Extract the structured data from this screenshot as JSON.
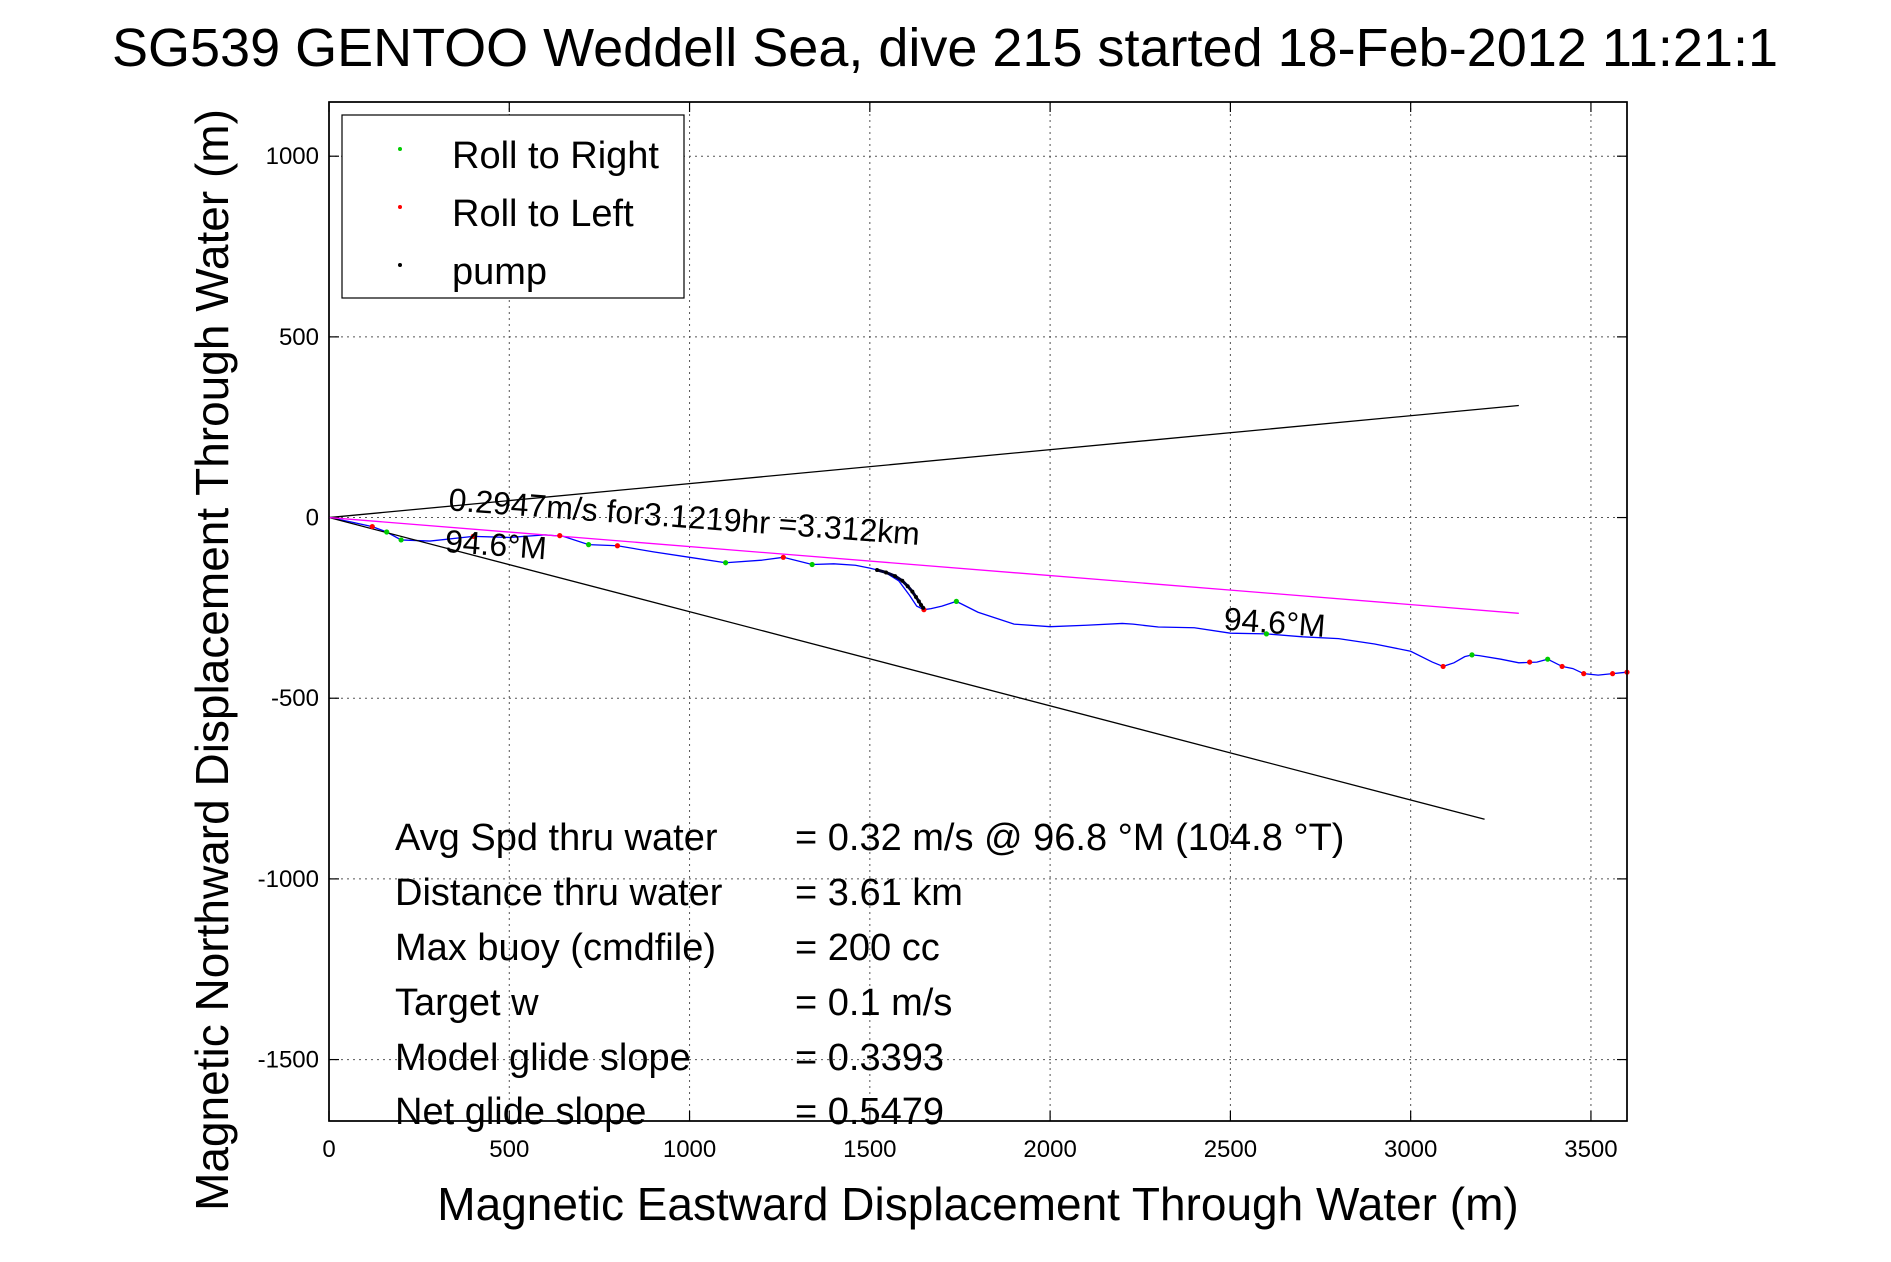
{
  "chart_data": {
    "type": "line",
    "title": "SG539 GENTOO Weddell Sea, dive 215 started 18-Feb-2012 11:21:1",
    "xlabel": "Magnetic Eastward Displacement Through Water (m)",
    "ylabel": "Magnetic Northward Displacement Through Water (m)",
    "xlim": [
      0,
      3600
    ],
    "ylim": [
      -1670,
      1150
    ],
    "xticks": [
      0,
      500,
      1000,
      1500,
      2000,
      2500,
      3000,
      3500
    ],
    "yticks": [
      1000,
      500,
      0,
      -500,
      -1000,
      -1500
    ],
    "xtick_labels": [
      "0",
      "500",
      "1000",
      "1500",
      "2000",
      "2500",
      "3000",
      "3500"
    ],
    "ytick_labels": [
      "1000",
      "500",
      "0",
      "-500",
      "-1000",
      "-1500"
    ],
    "grid": true,
    "legend": {
      "position": "top-left",
      "entries": [
        {
          "label": "Roll to Right",
          "color": "#00cc00"
        },
        {
          "label": "Roll to Left",
          "color": "#ff0000"
        },
        {
          "label": "pump",
          "color": "#000000"
        }
      ]
    },
    "series": [
      {
        "name": "track",
        "color": "#0000ff",
        "x": [
          0,
          60,
          120,
          160,
          200,
          280,
          400,
          500,
          600,
          650,
          720,
          800,
          900,
          1000,
          1100,
          1200,
          1260,
          1340,
          1400,
          1460,
          1500,
          1540,
          1580,
          1610,
          1630,
          1650,
          1670,
          1700,
          1740,
          1800,
          1900,
          2000,
          2100,
          2200,
          2230,
          2300,
          2400,
          2500,
          2600,
          2700,
          2800,
          2900,
          3000,
          3060,
          3090,
          3120,
          3150,
          3170,
          3190,
          3250,
          3300,
          3350,
          3380,
          3420,
          3450,
          3480,
          3520,
          3560,
          3600
        ],
        "y": [
          0,
          -12,
          -25,
          -40,
          -62,
          -65,
          -52,
          -55,
          -48,
          -52,
          -75,
          -78,
          -95,
          -110,
          -125,
          -118,
          -110,
          -130,
          -128,
          -132,
          -140,
          -150,
          -175,
          -215,
          -245,
          -255,
          -252,
          -245,
          -232,
          -262,
          -295,
          -302,
          -298,
          -293,
          -295,
          -303,
          -305,
          -320,
          -322,
          -330,
          -335,
          -350,
          -370,
          -400,
          -412,
          -402,
          -385,
          -380,
          -382,
          -392,
          -402,
          -400,
          -392,
          -412,
          -418,
          -432,
          -436,
          -432,
          -428
        ]
      },
      {
        "name": "reference lines (black)",
        "color": "#000000",
        "segments": [
          {
            "x": [
              0,
              3300
            ],
            "y": [
              0,
              310
            ]
          },
          {
            "x": [
              0,
              3205
            ],
            "y": [
              0,
              -835
            ]
          }
        ]
      },
      {
        "name": "net heading line (magenta)",
        "color": "#ff00ff",
        "segments": [
          {
            "x": [
              0,
              3300
            ],
            "y": [
              0,
              -265
            ]
          }
        ]
      }
    ],
    "markers": {
      "roll_right": {
        "color": "#00cc00",
        "x": [
          160,
          200,
          720,
          1100,
          1340,
          1740,
          2600,
          3170,
          3380
        ],
        "y": [
          -40,
          -62,
          -75,
          -125,
          -130,
          -232,
          -322,
          -380,
          -392
        ]
      },
      "roll_left": {
        "color": "#ff0000",
        "x": [
          120,
          400,
          640,
          800,
          1260,
          1650,
          3090,
          3330,
          3420,
          3480,
          3560,
          3600
        ],
        "y": [
          -25,
          -52,
          -50,
          -78,
          -110,
          -255,
          -412,
          -400,
          -412,
          -432,
          -432,
          -428
        ]
      },
      "pump": {
        "color": "#000000",
        "x": [
          1520,
          1545,
          1570,
          1590,
          1605,
          1618,
          1628,
          1636,
          1642,
          1648
        ],
        "y": [
          -145,
          -152,
          -162,
          -175,
          -190,
          -205,
          -220,
          -232,
          -242,
          -250
        ]
      }
    },
    "annotations": [
      {
        "text": "0.2947m/s for3.1219hr =3.312km",
        "x": 330,
        "y": 20
      },
      {
        "text": "94.6°M",
        "x": 320,
        "y": -95
      },
      {
        "text": "94.6°M",
        "x": 2480,
        "y": -310
      }
    ],
    "stats": [
      {
        "label": "Avg Spd thru water",
        "value": "=  0.32 m/s @  96.8 °M (104.8 °T)"
      },
      {
        "label": "Distance thru water",
        "value": "=  3.61 km"
      },
      {
        "label": "Max buoy (cmdfile)",
        "value": "= 200 cc"
      },
      {
        "label": "Target w",
        "value": "= 0.1 m/s"
      },
      {
        "label": "Model glide slope",
        "value": "= 0.3393"
      },
      {
        "label": "Net glide slope",
        "value": "= 0.5479"
      }
    ]
  }
}
